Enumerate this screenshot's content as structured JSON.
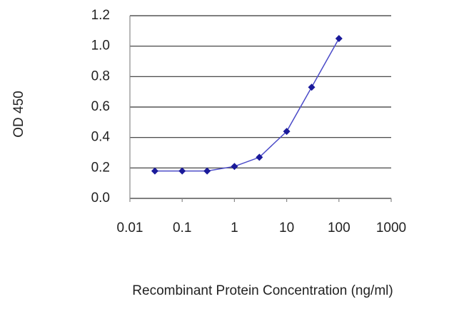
{
  "chart_data": {
    "type": "line",
    "y_label": "OD 450",
    "x_label": "Recombinant Protein Concentration (ng/ml)",
    "x": [
      0.03,
      0.1,
      0.3,
      1,
      3,
      10,
      30,
      100
    ],
    "values": [
      0.18,
      0.18,
      0.18,
      0.21,
      0.27,
      0.44,
      0.73,
      1.05
    ],
    "line_color": "#4b4bc8",
    "marker_color": "#1a1a9a",
    "x_log": true,
    "xlim": [
      0.01,
      1000
    ],
    "xticks": [
      0.01,
      0.1,
      1,
      10,
      100,
      1000
    ],
    "ylim": [
      0,
      1.2
    ],
    "yticks": [
      {
        "value": 0,
        "label": "0.0"
      },
      0.2,
      0.4,
      0.6,
      0.8,
      {
        "value": 1,
        "label": "1.0"
      },
      1.2
    ],
    "grid": true
  }
}
